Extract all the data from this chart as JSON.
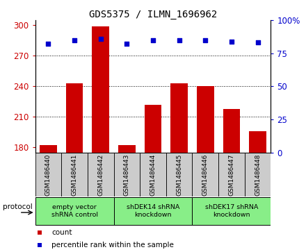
{
  "title": "GDS5375 / ILMN_1696962",
  "samples": [
    "GSM1486440",
    "GSM1486441",
    "GSM1486442",
    "GSM1486443",
    "GSM1486444",
    "GSM1486445",
    "GSM1486446",
    "GSM1486447",
    "GSM1486448"
  ],
  "counts": [
    182,
    243,
    299,
    182,
    222,
    243,
    240,
    218,
    196
  ],
  "percentile_ranks": [
    82,
    85,
    86,
    82,
    85,
    85,
    85,
    84,
    83
  ],
  "ylim_left": [
    175,
    305
  ],
  "ylim_right": [
    0,
    100
  ],
  "yticks_left": [
    180,
    210,
    240,
    270,
    300
  ],
  "yticks_right": [
    0,
    25,
    50,
    75,
    100
  ],
  "bar_color": "#cc0000",
  "dot_color": "#0000cc",
  "group_labels": [
    "empty vector\nshRNA control",
    "shDEK14 shRNA\nknockdown",
    "shDEK17 shRNA\nknockdown"
  ],
  "group_starts": [
    0,
    3,
    6
  ],
  "group_ends": [
    3,
    6,
    9
  ],
  "group_color": "#88ee88",
  "xtick_bg_color": "#cccccc",
  "legend_count_label": "count",
  "legend_percentile_label": "percentile rank within the sample",
  "protocol_label": "protocol",
  "bar_color_legend": "#cc0000",
  "dot_color_legend": "#0000cc",
  "axis_label_color_left": "#cc0000",
  "axis_label_color_right": "#0000cc",
  "gridline_yticks": [
    210,
    240,
    270
  ]
}
